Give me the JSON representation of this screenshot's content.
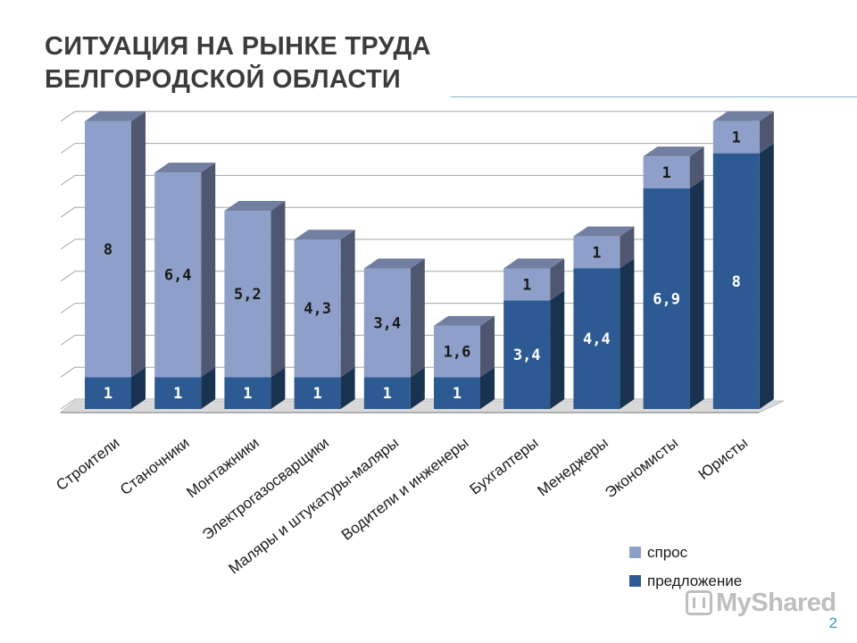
{
  "slide": {
    "title_line1": "СИТУАЦИЯ НА РЫНКЕ ТРУДА",
    "title_line2": "БЕЛГОРОДСКОЙ ОБЛАСТИ",
    "page_number": "2",
    "watermark": "MyShared"
  },
  "chart_data": {
    "type": "bar",
    "stacked": true,
    "categories": [
      "Строители",
      "Станочники",
      "Монтажники",
      "Электрогазосварщики",
      "Маляры и штукатуры-маляры",
      "Водители и инженеры",
      "Бухгалтеры",
      "Менеджеры",
      "Экономисты",
      "Юристы"
    ],
    "series": [
      {
        "name": "предложение",
        "values": [
          1,
          1,
          1,
          1,
          1,
          1,
          3.4,
          4.4,
          6.9,
          8
        ],
        "labels": [
          "1",
          "1",
          "1",
          "1",
          "1",
          "1",
          "3,4",
          "4,4",
          "6,9",
          "8"
        ],
        "color": "#2d5a92"
      },
      {
        "name": "спрос",
        "values": [
          8,
          6.4,
          5.2,
          4.3,
          3.4,
          1.6,
          1,
          1,
          1,
          1
        ],
        "labels": [
          "8",
          "6,4",
          "5,2",
          "4,3",
          "3,4",
          "1,6",
          "1",
          "1",
          "1",
          "1"
        ],
        "color": "#8e9fc9"
      }
    ],
    "ylim": [
      0,
      9
    ],
    "grid": true,
    "legend_position": "bottom-right",
    "colors": {
      "supply": "#2d5a92",
      "demand": "#8e9fc9",
      "grid": "#a6a6a6",
      "floor": "#d9d9d9"
    }
  }
}
